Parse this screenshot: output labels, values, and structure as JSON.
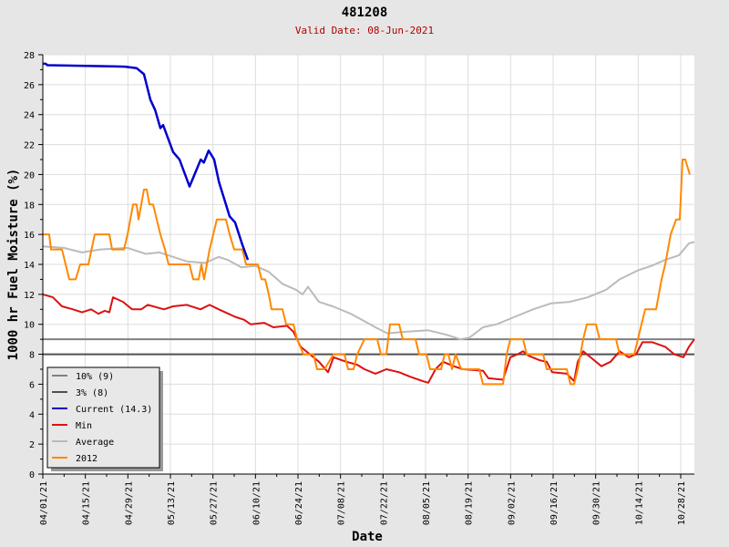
{
  "chart_data": {
    "type": "line",
    "title": "481208",
    "subtitle": "Valid Date: 08-Jun-2021",
    "xlabel": "Date",
    "ylabel": "1000 hr Fuel Moisture (%)",
    "x_unit": "days since 04/01/21",
    "xlim": [
      0,
      214.5
    ],
    "ylim": [
      0,
      28
    ],
    "y_ticks": [
      0,
      2,
      4,
      6,
      8,
      10,
      12,
      14,
      16,
      18,
      20,
      22,
      24,
      26,
      28
    ],
    "x_tick_days": [
      0,
      14,
      28,
      42,
      56,
      70,
      84,
      98,
      112,
      126,
      140,
      154,
      168,
      182,
      196,
      210
    ],
    "x_tick_labels": [
      "04/01/21",
      "04/15/21",
      "04/29/21",
      "05/13/21",
      "05/27/21",
      "06/10/21",
      "06/24/21",
      "07/08/21",
      "07/22/21",
      "08/05/21",
      "08/19/21",
      "09/02/21",
      "09/16/21",
      "09/30/21",
      "10/14/21",
      "10/28/21"
    ],
    "grid": true,
    "legend_position": "bottom-left",
    "reference_lines": [
      {
        "name": "10% (9)",
        "value": 9,
        "color": "#808080"
      },
      {
        "name": "3% (8)",
        "value": 8,
        "color": "#505050"
      }
    ],
    "series": [
      {
        "name": "Current (14.3)",
        "color": "#0000cc",
        "points": [
          [
            0,
            27.4
          ],
          [
            0.9,
            27.4
          ],
          [
            1.5,
            27.3
          ],
          [
            27,
            27.2
          ],
          [
            30.9,
            27.1
          ],
          [
            33.3,
            26.7
          ],
          [
            35.4,
            25
          ],
          [
            37,
            24.3
          ],
          [
            38.7,
            23.1
          ],
          [
            39.6,
            23.3
          ],
          [
            42.9,
            21.5
          ],
          [
            45,
            21
          ],
          [
            48.3,
            19.2
          ],
          [
            52,
            21
          ],
          [
            53,
            20.8
          ],
          [
            54.6,
            21.6
          ],
          [
            56.4,
            21
          ],
          [
            58,
            19.5
          ],
          [
            61.5,
            17.2
          ],
          [
            63.3,
            16.8
          ],
          [
            65.7,
            15.3
          ],
          [
            67.5,
            14.3
          ]
        ]
      },
      {
        "name": "Min",
        "color": "#dd1111",
        "points": [
          [
            0,
            12
          ],
          [
            3.3,
            11.8
          ],
          [
            6.3,
            11.2
          ],
          [
            9.9,
            11
          ],
          [
            12.9,
            10.8
          ],
          [
            15.9,
            11
          ],
          [
            18.3,
            10.7
          ],
          [
            20.4,
            10.9
          ],
          [
            21.9,
            10.8
          ],
          [
            23.1,
            11.8
          ],
          [
            26.4,
            11.5
          ],
          [
            29.4,
            11
          ],
          [
            32.4,
            11
          ],
          [
            34.5,
            11.3
          ],
          [
            39.9,
            11
          ],
          [
            42.9,
            11.2
          ],
          [
            47.4,
            11.3
          ],
          [
            51.9,
            11
          ],
          [
            54.9,
            11.3
          ],
          [
            57.9,
            11
          ],
          [
            63.3,
            10.5
          ],
          [
            66.3,
            10.3
          ],
          [
            68.4,
            10
          ],
          [
            72.9,
            10.1
          ],
          [
            75.9,
            9.8
          ],
          [
            80.4,
            9.9
          ],
          [
            82.5,
            9.5
          ],
          [
            84.9,
            8.5
          ],
          [
            87.9,
            8
          ],
          [
            90.9,
            7.5
          ],
          [
            93.9,
            6.8
          ],
          [
            95.7,
            7.8
          ],
          [
            99.9,
            7.5
          ],
          [
            103.5,
            7.3
          ],
          [
            105.9,
            7
          ],
          [
            109.5,
            6.7
          ],
          [
            113.1,
            7
          ],
          [
            117.3,
            6.8
          ],
          [
            120.9,
            6.5
          ],
          [
            125.1,
            6.2
          ],
          [
            126.9,
            6.1
          ],
          [
            129.3,
            7
          ],
          [
            131.7,
            7.5
          ],
          [
            135.3,
            7.2
          ],
          [
            138.3,
            7
          ],
          [
            144.9,
            6.9
          ],
          [
            146.7,
            6.4
          ],
          [
            151.5,
            6.3
          ],
          [
            153.9,
            7.8
          ],
          [
            156.3,
            8
          ],
          [
            158.1,
            8.2
          ],
          [
            159.9,
            7.9
          ],
          [
            163.5,
            7.6
          ],
          [
            165.9,
            7.5
          ],
          [
            167.7,
            6.8
          ],
          [
            172.5,
            6.7
          ],
          [
            174.9,
            6.2
          ],
          [
            176.1,
            7.5
          ],
          [
            177.9,
            8.2
          ],
          [
            180.3,
            7.8
          ],
          [
            183.9,
            7.2
          ],
          [
            186.9,
            7.5
          ],
          [
            189.9,
            8.2
          ],
          [
            192.9,
            7.8
          ],
          [
            195.3,
            8
          ],
          [
            197.4,
            8.8
          ],
          [
            200.7,
            8.8
          ],
          [
            204.9,
            8.5
          ],
          [
            207.9,
            8
          ],
          [
            210.9,
            7.8
          ],
          [
            212.7,
            8.5
          ],
          [
            214.5,
            9
          ]
        ]
      },
      {
        "name": "Average",
        "color": "#bbbbbb",
        "points": [
          [
            0,
            15.2
          ],
          [
            6.9,
            15.1
          ],
          [
            12.9,
            14.8
          ],
          [
            18.9,
            15
          ],
          [
            27.9,
            15.1
          ],
          [
            33.9,
            14.7
          ],
          [
            38.4,
            14.8
          ],
          [
            42.9,
            14.5
          ],
          [
            47.4,
            14.2
          ],
          [
            53.4,
            14.1
          ],
          [
            57.9,
            14.5
          ],
          [
            60.9,
            14.3
          ],
          [
            65.4,
            13.8
          ],
          [
            69.9,
            13.9
          ],
          [
            74.4,
            13.5
          ],
          [
            78.9,
            12.7
          ],
          [
            83.4,
            12.3
          ],
          [
            85.5,
            12
          ],
          [
            87.3,
            12.5
          ],
          [
            90.9,
            11.5
          ],
          [
            95.4,
            11.2
          ],
          [
            101.4,
            10.7
          ],
          [
            105.9,
            10.2
          ],
          [
            109.5,
            9.8
          ],
          [
            113.4,
            9.4
          ],
          [
            119.4,
            9.5
          ],
          [
            126.9,
            9.6
          ],
          [
            132.9,
            9.3
          ],
          [
            137.4,
            9
          ],
          [
            140.4,
            9.1
          ],
          [
            144.9,
            9.8
          ],
          [
            149.4,
            10
          ],
          [
            155.4,
            10.5
          ],
          [
            161.4,
            11
          ],
          [
            167.4,
            11.4
          ],
          [
            173.4,
            11.5
          ],
          [
            179.4,
            11.8
          ],
          [
            185.4,
            12.3
          ],
          [
            189.9,
            13
          ],
          [
            195.9,
            13.6
          ],
          [
            200.4,
            13.9
          ],
          [
            204.9,
            14.3
          ],
          [
            209.4,
            14.6
          ],
          [
            212.7,
            15.4
          ],
          [
            214.5,
            15.5
          ]
        ]
      },
      {
        "name": "2012",
        "color": "#ff8800",
        "points": [
          [
            0,
            16
          ],
          [
            2.1,
            16
          ],
          [
            2.7,
            15
          ],
          [
            6.3,
            15
          ],
          [
            7.5,
            14
          ],
          [
            8.7,
            13
          ],
          [
            10.8,
            13
          ],
          [
            12.3,
            14
          ],
          [
            15,
            14
          ],
          [
            17.1,
            16
          ],
          [
            21.9,
            16
          ],
          [
            22.8,
            15
          ],
          [
            26.7,
            15
          ],
          [
            27.9,
            16
          ],
          [
            29.7,
            18
          ],
          [
            30.9,
            18
          ],
          [
            31.5,
            17
          ],
          [
            33.3,
            19
          ],
          [
            34.2,
            19
          ],
          [
            35.1,
            18
          ],
          [
            36.3,
            18
          ],
          [
            37.5,
            17
          ],
          [
            38.7,
            16
          ],
          [
            40.2,
            15
          ],
          [
            41.4,
            14
          ],
          [
            42.9,
            14
          ],
          [
            48.3,
            14
          ],
          [
            49.5,
            13
          ],
          [
            51.3,
            13
          ],
          [
            52.2,
            14
          ],
          [
            53.1,
            13
          ],
          [
            54.9,
            15
          ],
          [
            57.3,
            17
          ],
          [
            60.3,
            17
          ],
          [
            61.5,
            16
          ],
          [
            63,
            15
          ],
          [
            65.7,
            15
          ],
          [
            66.9,
            14
          ],
          [
            70.8,
            14
          ],
          [
            72,
            13
          ],
          [
            73.2,
            13
          ],
          [
            74.4,
            12
          ],
          [
            75.3,
            11
          ],
          [
            78.9,
            11
          ],
          [
            80.1,
            10
          ],
          [
            82.5,
            10
          ],
          [
            83.7,
            9
          ],
          [
            85.8,
            8
          ],
          [
            89.1,
            8
          ],
          [
            90.3,
            7
          ],
          [
            92.7,
            7
          ],
          [
            95.7,
            8
          ],
          [
            99.3,
            8
          ],
          [
            100.5,
            7
          ],
          [
            102.3,
            7
          ],
          [
            103.5,
            8
          ],
          [
            105.9,
            9
          ],
          [
            110.1,
            9
          ],
          [
            111.3,
            8
          ],
          [
            113.1,
            8
          ],
          [
            114.3,
            10
          ],
          [
            117.3,
            10
          ],
          [
            118.5,
            9
          ],
          [
            122.7,
            9
          ],
          [
            123.9,
            8
          ],
          [
            126.3,
            8
          ],
          [
            127.5,
            7
          ],
          [
            131.1,
            7
          ],
          [
            132.3,
            8
          ],
          [
            133.5,
            8
          ],
          [
            134.7,
            7
          ],
          [
            135.9,
            8
          ],
          [
            137.7,
            7
          ],
          [
            143.7,
            7
          ],
          [
            144.9,
            6
          ],
          [
            151.5,
            6
          ],
          [
            152.7,
            8
          ],
          [
            153.9,
            9
          ],
          [
            158.1,
            9
          ],
          [
            159.3,
            8
          ],
          [
            164.7,
            8
          ],
          [
            165.9,
            7
          ],
          [
            172.5,
            7
          ],
          [
            173.7,
            6
          ],
          [
            174.9,
            6
          ],
          [
            176.1,
            7
          ],
          [
            177.9,
            9
          ],
          [
            179.1,
            10
          ],
          [
            182.1,
            10
          ],
          [
            183.3,
            9
          ],
          [
            188.7,
            9
          ],
          [
            189.9,
            8
          ],
          [
            194.7,
            8
          ],
          [
            195.9,
            9
          ],
          [
            198.3,
            11
          ],
          [
            201.9,
            11
          ],
          [
            203.7,
            13
          ],
          [
            204.9,
            14
          ],
          [
            206.7,
            16
          ],
          [
            208.5,
            17
          ],
          [
            209.7,
            17
          ],
          [
            210.6,
            21
          ],
          [
            211.5,
            21
          ],
          [
            213,
            20
          ]
        ]
      }
    ],
    "legend": [
      "10% (9)",
      "3% (8)",
      "Current (14.3)",
      "Min",
      "Average",
      "2012"
    ]
  }
}
